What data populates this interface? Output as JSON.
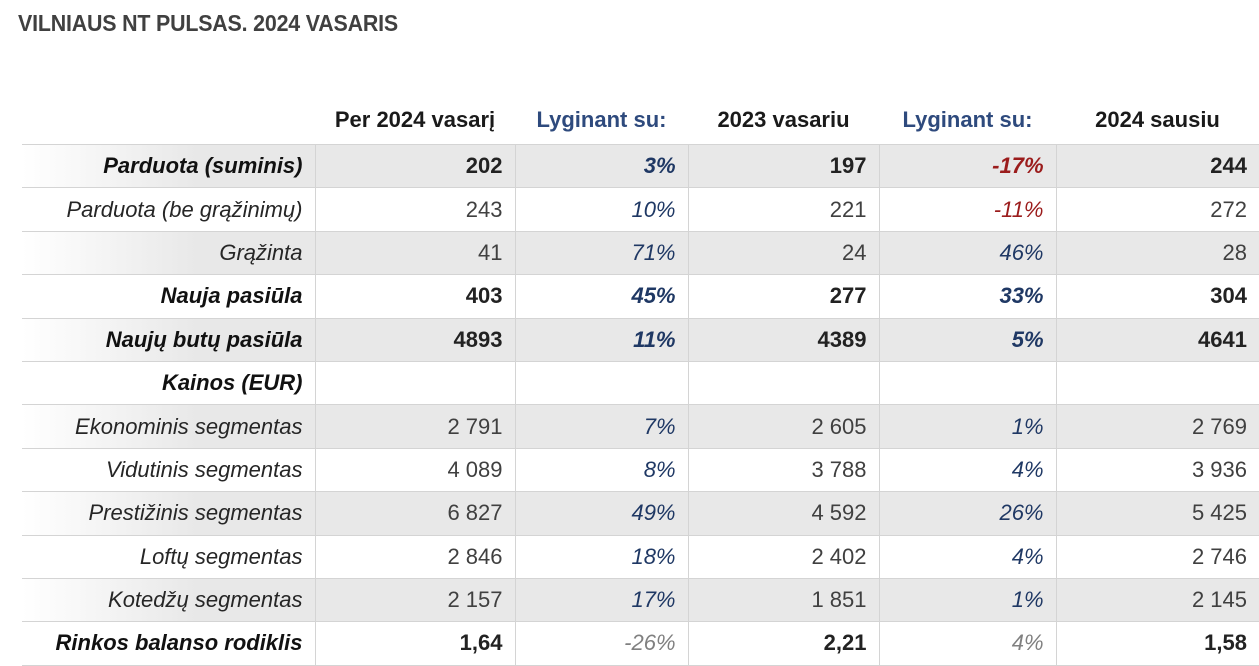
{
  "title": "VILNIAUS NT PULSAS. 2024 VASARIS",
  "headers": [
    "",
    "Per 2024 vasarį",
    "Lyginant su:",
    "2023 vasariu",
    "Lyginant su:",
    "2024 sausiu"
  ],
  "rows": [
    {
      "label": "Parduota (suminis)",
      "v1": "202",
      "p1": "3%",
      "v2": "197",
      "p2": "-17%",
      "v3": "244"
    },
    {
      "label": "Parduota (be grąžinimų)",
      "v1": "243",
      "p1": "10%",
      "v2": "221",
      "p2": "-11%",
      "v3": "272"
    },
    {
      "label": "Grąžinta",
      "v1": "41",
      "p1": "71%",
      "v2": "24",
      "p2": "46%",
      "v3": "28"
    },
    {
      "label": "Nauja pasiūla",
      "v1": "403",
      "p1": "45%",
      "v2": "277",
      "p2": "33%",
      "v3": "304"
    },
    {
      "label": "Naujų butų pasiūla",
      "v1": "4893",
      "p1": "11%",
      "v2": "4389",
      "p2": "5%",
      "v3": "4641"
    },
    {
      "label": "Kainos (EUR)",
      "v1": "",
      "p1": "",
      "v2": "",
      "p2": "",
      "v3": ""
    },
    {
      "label": "Ekonominis segmentas",
      "v1": "2 791",
      "p1": "7%",
      "v2": "2 605",
      "p2": "1%",
      "v3": "2 769"
    },
    {
      "label": "Vidutinis segmentas",
      "v1": "4 089",
      "p1": "8%",
      "v2": "3 788",
      "p2": "4%",
      "v3": "3 936"
    },
    {
      "label": "Prestižinis segmentas",
      "v1": "6 827",
      "p1": "49%",
      "v2": "4 592",
      "p2": "26%",
      "v3": "5 425"
    },
    {
      "label": "Loftų segmentas",
      "v1": "2 846",
      "p1": "18%",
      "v2": "2 402",
      "p2": "4%",
      "v3": "2 746"
    },
    {
      "label": "Kotedžų segmentas",
      "v1": "2 157",
      "p1": "17%",
      "v2": "1 851",
      "p2": "1%",
      "v3": "2 145"
    },
    {
      "label": "Rinkos balanso rodiklis",
      "v1": "1,64",
      "p1": "-26%",
      "v2": "2,21",
      "p2": "4%",
      "v3": "1,58"
    }
  ],
  "colors": {
    "comparison_header": "#2e4a7d",
    "positive_pct": "#1f3864",
    "negative_pct": "#9b1c1c",
    "neutral_pct": "#808080",
    "row_shade": "#e8e8e8"
  }
}
